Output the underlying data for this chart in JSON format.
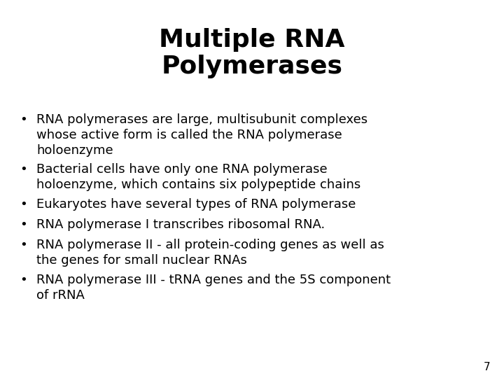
{
  "title_line1": "Multiple RNA",
  "title_line2": "Polymerases",
  "title_fontsize": 26,
  "title_fontweight": "bold",
  "body_fontsize": 13,
  "bullet_points": [
    "RNA polymerases are large, multisubunit complexes\nwhose active form is called the RNA polymerase\nholoenzyme",
    "Bacterial cells have only one RNA polymerase\nholoenzyme, which contains six polypeptide chains",
    "Eukaryotes have several types of RNA polymerase",
    "RNA polymerase I transcribes ribosomal RNA.",
    "RNA polymerase II - all protein-coding genes as well as\nthe genes for small nuclear RNAs",
    "RNA polymerase III - tRNA genes and the 5S component\nof rRNA"
  ],
  "bullet_line_counts": [
    3,
    2,
    1,
    1,
    2,
    2
  ],
  "background_color": "#ffffff",
  "text_color": "#000000",
  "page_number": "7",
  "page_number_fontsize": 11,
  "font_family": "DejaVu Sans"
}
